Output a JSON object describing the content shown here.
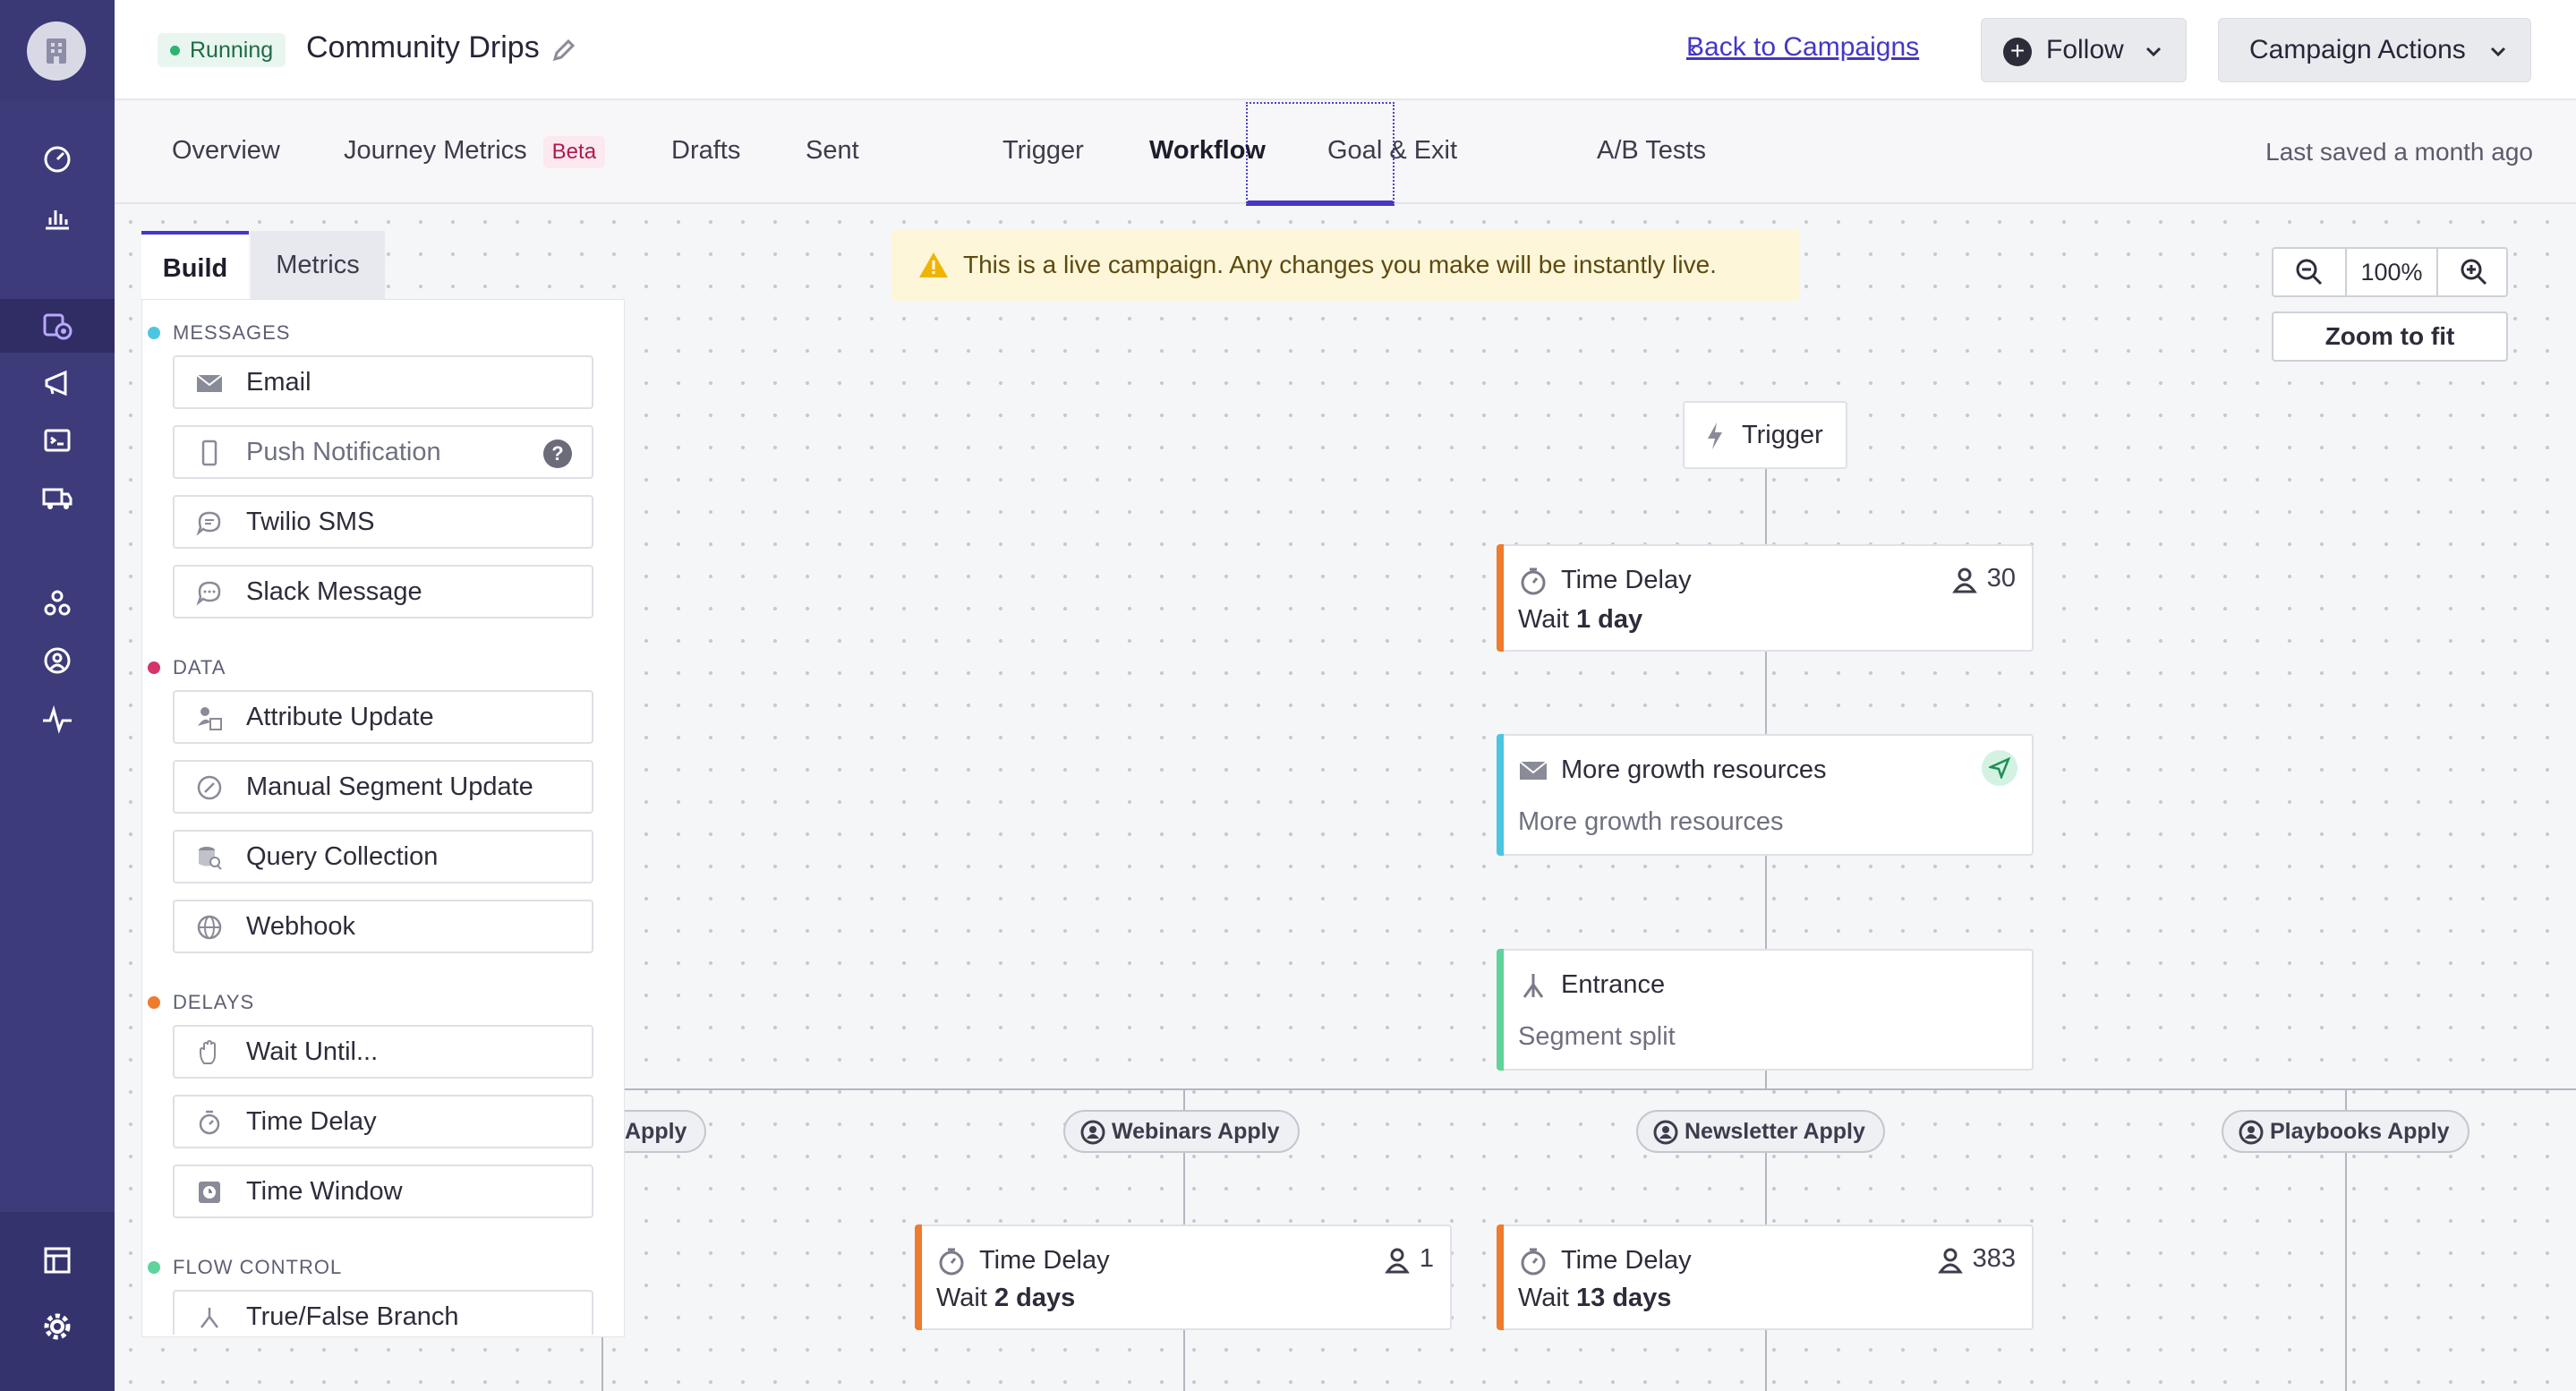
{
  "header": {
    "status": "Running",
    "title": "Community Drips",
    "back_link": "Back to Campaigns",
    "follow_label": "Follow",
    "actions_label": "Campaign Actions"
  },
  "tabs": [
    {
      "label": "Overview"
    },
    {
      "label": "Journey Metrics",
      "badge": "Beta"
    },
    {
      "label": "Drafts"
    },
    {
      "label": "Sent"
    },
    {
      "label": "Trigger"
    },
    {
      "label": "Workflow",
      "active": true
    },
    {
      "label": "Goal & Exit"
    },
    {
      "label": "A/B Tests"
    }
  ],
  "last_saved": "Last saved a month ago",
  "panel": {
    "tabs": [
      "Build",
      "Metrics"
    ],
    "sections": {
      "messages": "MESSAGES",
      "data": "DATA",
      "delays": "DELAYS",
      "flow_control": "FLOW CONTROL"
    },
    "messages": [
      "Email",
      "Push Notification",
      "Twilio SMS",
      "Slack Message"
    ],
    "data": [
      "Attribute Update",
      "Manual Segment Update",
      "Query Collection",
      "Webhook"
    ],
    "delays": [
      "Wait Until...",
      "Time Delay",
      "Time Window"
    ],
    "flow_control": [
      "True/False Branch"
    ]
  },
  "warning": "This is a live campaign. Any changes you make will be instantly live.",
  "zoom": {
    "level": "100%",
    "fit_label": "Zoom to fit"
  },
  "workflow": {
    "trigger": "Trigger",
    "delay1": {
      "title": "Time Delay",
      "wait_prefix": "Wait",
      "wait_value": "1 day",
      "count": "30"
    },
    "email": {
      "title": "More growth resources",
      "subtitle": "More growth resources"
    },
    "split": {
      "title": "Entrance",
      "subtitle": "Segment split"
    },
    "branches": [
      "Apply",
      "Webinars Apply",
      "Newsletter Apply",
      "Playbooks Apply"
    ],
    "delay2": {
      "title": "Time Delay",
      "wait_prefix": "Wait",
      "wait_value": "2 days",
      "count": "1"
    },
    "delay3": {
      "title": "Time Delay",
      "wait_prefix": "Wait",
      "wait_value": "13 days",
      "count": "383"
    }
  },
  "colors": {
    "rail": "#3d3b7a",
    "accent": "#4437c7",
    "messages_dot": "#4cc6e0",
    "data_dot": "#d6336c",
    "delays_dot": "#ef7b2e",
    "flow_dot": "#5fd39a",
    "delay_accent": "#ef7b2e",
    "email_accent": "#4cc6e0",
    "split_accent": "#5fd39a"
  }
}
